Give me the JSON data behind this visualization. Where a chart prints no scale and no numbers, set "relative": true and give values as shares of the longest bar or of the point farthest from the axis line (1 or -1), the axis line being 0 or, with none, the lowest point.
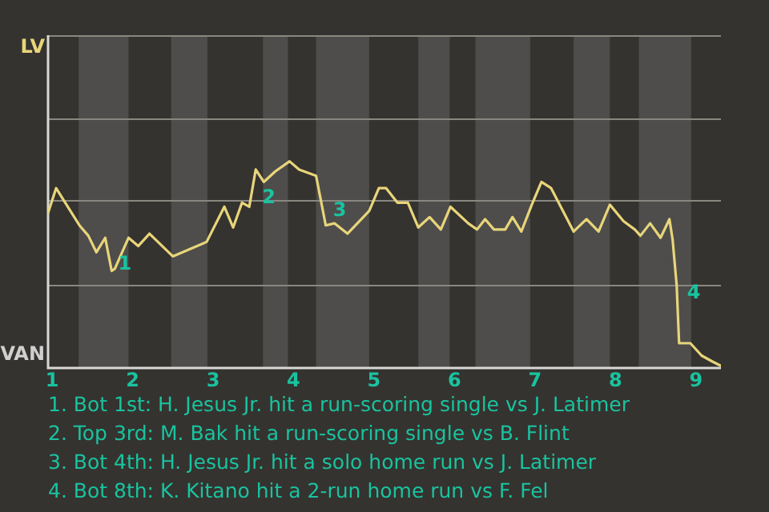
{
  "chart_data": {
    "type": "line",
    "relative": true,
    "x": [
      0.95,
      1.05,
      1.34,
      1.45,
      1.55,
      1.66,
      1.74,
      1.78,
      1.95,
      2.07,
      2.21,
      2.5,
      2.92,
      3.14,
      3.25,
      3.36,
      3.45,
      3.53,
      3.63,
      3.77,
      3.95,
      4.07,
      4.28,
      4.4,
      4.51,
      4.67,
      4.94,
      5.06,
      5.15,
      5.29,
      5.42,
      5.55,
      5.69,
      5.83,
      5.95,
      6.17,
      6.28,
      6.38,
      6.49,
      6.63,
      6.72,
      6.83,
      6.96,
      7.08,
      7.2,
      7.48,
      7.64,
      7.79,
      7.93,
      8.1,
      8.24,
      8.31,
      8.43,
      8.56,
      8.67,
      8.71,
      8.76,
      8.79,
      8.93,
      9.07,
      9.21,
      9.31
    ],
    "series": [
      {
        "color": "#e8d57a",
        "values": [
          0.75,
          0.87,
          0.69,
          0.64,
          0.56,
          0.63,
          0.47,
          0.48,
          0.63,
          0.59,
          0.65,
          0.54,
          0.61,
          0.78,
          0.68,
          0.8,
          0.78,
          0.96,
          0.9,
          0.95,
          1,
          0.96,
          0.93,
          0.69,
          0.7,
          0.65,
          0.76,
          0.87,
          0.87,
          0.8,
          0.8,
          0.68,
          0.73,
          0.67,
          0.78,
          0.7,
          0.67,
          0.72,
          0.67,
          0.67,
          0.73,
          0.66,
          0.79,
          0.9,
          0.87,
          0.66,
          0.72,
          0.66,
          0.79,
          0.71,
          0.67,
          0.64,
          0.7,
          0.63,
          0.72,
          0.62,
          0.4,
          0.12,
          0.12,
          0.06,
          0.03,
          0.01
        ],
        "line_style": "solid"
      }
    ],
    "xlim": [
      0.95,
      9.31
    ],
    "xticks": [
      1,
      2,
      3,
      4,
      5,
      6,
      7,
      8,
      9
    ],
    "marker": "none",
    "ref_lines": [
      {
        "axis": "y",
        "value": 0.4,
        "color": "#8a8780"
      },
      {
        "axis": "y",
        "value": 0.81,
        "color": "#8a8780"
      },
      {
        "axis": "y",
        "value": 1.21,
        "color": "#8a8780"
      }
    ],
    "bands": [
      {
        "axis": "x",
        "from": 1.33,
        "to": 1.95,
        "color": "#4e4d4b"
      },
      {
        "axis": "x",
        "from": 2.48,
        "to": 2.93,
        "color": "#4e4d4b"
      },
      {
        "axis": "x",
        "from": 3.62,
        "to": 3.93,
        "color": "#4e4d4b"
      },
      {
        "axis": "x",
        "from": 4.28,
        "to": 4.94,
        "color": "#4e4d4b"
      },
      {
        "axis": "x",
        "from": 5.55,
        "to": 5.94,
        "color": "#4e4d4b"
      },
      {
        "axis": "x",
        "from": 6.26,
        "to": 6.94,
        "color": "#4e4d4b"
      },
      {
        "axis": "x",
        "from": 7.48,
        "to": 7.93,
        "color": "#4e4d4b"
      },
      {
        "axis": "x",
        "from": 8.29,
        "to": 8.94,
        "color": "#4e4d4b"
      }
    ],
    "annotations": [
      {
        "text": "1",
        "x": 1.78,
        "y": 0.5
      },
      {
        "text": "2",
        "x": 3.57,
        "y": 0.82
      },
      {
        "text": "3",
        "x": 4.45,
        "y": 0.76
      },
      {
        "text": "4",
        "x": 8.85,
        "y": 0.36
      },
      "LV",
      "VAN",
      "1. Bot 1st: H. Jesus Jr. hit a run-scoring single vs J. Latimer",
      "2. Top 3rd: M. Bak hit a run-scoring single vs B. Flint",
      "3. Bot 4th: H. Jesus Jr. hit a solo home run vs J. Latimer",
      "4. Bot 8th: K. Kitano hit a 2-run home run vs F. Fel"
    ]
  }
}
